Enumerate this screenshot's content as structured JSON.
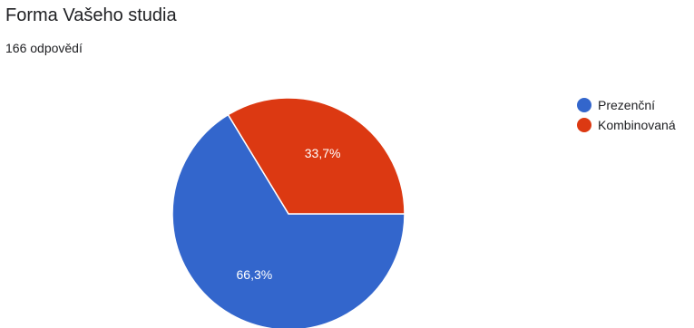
{
  "header": {
    "title": "Forma Vašeho studia",
    "subtitle": "166 odpovědí"
  },
  "chart_data": {
    "type": "pie",
    "categories": [
      "Prezenční",
      "Kombinovaná"
    ],
    "values": [
      66.3,
      33.7
    ],
    "labels": [
      "66,3%",
      "33,7%"
    ],
    "colors": [
      "#3366cc",
      "#dc3912"
    ],
    "legend_position": "right"
  }
}
